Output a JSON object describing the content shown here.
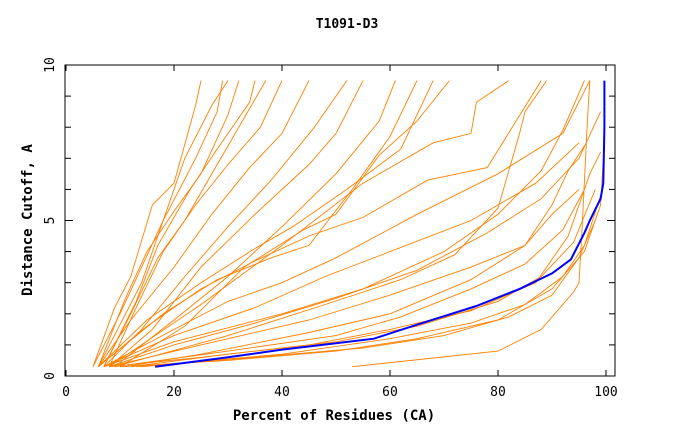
{
  "chart_data": {
    "type": "line",
    "title": "T1091-D3",
    "xlabel": "Percent of Residues (CA)",
    "ylabel": "Distance Cutoff, A",
    "xlim": [
      0,
      100
    ],
    "ylim": [
      0,
      10
    ],
    "xticks": [
      "0",
      "20",
      "40",
      "60",
      "80",
      "100"
    ],
    "yticks": [
      "0",
      "5",
      "10"
    ],
    "grid": false,
    "colors": {
      "models": "#ff8000",
      "highlight": "#0000ff"
    },
    "highlight_series": [
      [
        16.5,
        0.3
      ],
      [
        30,
        0.6
      ],
      [
        40,
        0.85
      ],
      [
        50,
        1.05
      ],
      [
        57,
        1.2
      ],
      [
        65,
        1.65
      ],
      [
        76,
        2.25
      ],
      [
        84,
        2.8
      ],
      [
        90,
        3.3
      ],
      [
        93.5,
        3.75
      ],
      [
        96,
        4.6
      ],
      [
        97,
        5.0
      ],
      [
        99,
        5.7
      ],
      [
        99.5,
        6.2
      ],
      [
        99.7,
        8
      ],
      [
        99.7,
        9.5
      ]
    ],
    "series": [
      [
        [
          10,
          0.3
        ],
        [
          30,
          0.5
        ],
        [
          50,
          0.8
        ],
        [
          65,
          1.2
        ],
        [
          80,
          1.8
        ],
        [
          90,
          2.8
        ],
        [
          96,
          4
        ],
        [
          99,
          5.5
        ],
        [
          99.5,
          7
        ]
      ],
      [
        [
          12,
          0.3
        ],
        [
          30,
          0.7
        ],
        [
          50,
          1.1
        ],
        [
          65,
          1.6
        ],
        [
          80,
          2.4
        ],
        [
          88,
          3.2
        ],
        [
          94,
          4.3
        ],
        [
          98,
          6
        ]
      ],
      [
        [
          8,
          0.3
        ],
        [
          25,
          0.6
        ],
        [
          45,
          1.0
        ],
        [
          60,
          1.5
        ],
        [
          75,
          2.1
        ],
        [
          87,
          3
        ],
        [
          93,
          4.5
        ],
        [
          97,
          6.5
        ],
        [
          99,
          7.2
        ]
      ],
      [
        [
          14,
          0.3
        ],
        [
          35,
          0.6
        ],
        [
          55,
          0.9
        ],
        [
          70,
          1.3
        ],
        [
          82,
          1.9
        ],
        [
          90,
          2.6
        ],
        [
          95,
          3.8
        ],
        [
          98,
          5
        ]
      ],
      [
        [
          9,
          0.3
        ],
        [
          30,
          0.8
        ],
        [
          50,
          1.3
        ],
        [
          62,
          1.9
        ],
        [
          75,
          2.8
        ],
        [
          85,
          3.6
        ],
        [
          92,
          4.7
        ],
        [
          96,
          6
        ]
      ],
      [
        [
          11,
          0.3
        ],
        [
          25,
          0.7
        ],
        [
          45,
          1.4
        ],
        [
          60,
          2.0
        ],
        [
          75,
          3.1
        ],
        [
          85,
          4.2
        ],
        [
          90,
          5.2
        ],
        [
          95,
          6
        ]
      ],
      [
        [
          13,
          0.3
        ],
        [
          40,
          0.7
        ],
        [
          60,
          1.2
        ],
        [
          75,
          1.7
        ],
        [
          85,
          2.3
        ],
        [
          92,
          3.2
        ],
        [
          96,
          4.2
        ],
        [
          99,
          5.8
        ]
      ],
      [
        [
          53,
          0.3
        ],
        [
          80,
          0.8
        ],
        [
          88,
          1.5
        ],
        [
          94,
          2.7
        ],
        [
          95,
          3
        ],
        [
          95.5,
          4.5
        ],
        [
          96.5,
          8
        ],
        [
          97,
          9.5
        ]
      ],
      [
        [
          8,
          0.3
        ],
        [
          20,
          1.0
        ],
        [
          35,
          1.7
        ],
        [
          50,
          2.5
        ],
        [
          65,
          3.4
        ],
        [
          78,
          4.6
        ],
        [
          88,
          5.7
        ],
        [
          95,
          7
        ],
        [
          99,
          8.5
        ]
      ],
      [
        [
          7,
          0.3
        ],
        [
          20,
          1.3
        ],
        [
          35,
          2.2
        ],
        [
          48,
          3.2
        ],
        [
          60,
          4.0
        ],
        [
          75,
          5.0
        ],
        [
          87,
          6.2
        ],
        [
          95,
          7.5
        ]
      ],
      [
        [
          7,
          0.3
        ],
        [
          20,
          1.5
        ],
        [
          30,
          2.4
        ],
        [
          40,
          3.0
        ],
        [
          50,
          3.8
        ],
        [
          65,
          5.2
        ],
        [
          80,
          6.5
        ],
        [
          92,
          7.8
        ],
        [
          97,
          9.5
        ]
      ],
      [
        [
          6,
          0.3
        ],
        [
          15,
          1.6
        ],
        [
          25,
          2.8
        ],
        [
          35,
          3.7
        ],
        [
          45,
          4.5
        ],
        [
          55,
          5.1
        ],
        [
          67,
          6.3
        ],
        [
          78,
          6.7
        ],
        [
          88,
          9.5
        ]
      ],
      [
        [
          6,
          0.3
        ],
        [
          15,
          1.8
        ],
        [
          25,
          3.0
        ],
        [
          35,
          4.1
        ],
        [
          42,
          4.8
        ],
        [
          52,
          6.0
        ],
        [
          62,
          7.3
        ],
        [
          68,
          9.5
        ]
      ],
      [
        [
          6,
          0.3
        ],
        [
          18,
          2.0
        ],
        [
          28,
          3.1
        ],
        [
          38,
          3.8
        ],
        [
          45,
          4.2
        ],
        [
          53,
          6.0
        ],
        [
          60,
          7.7
        ],
        [
          65,
          9.5
        ]
      ],
      [
        [
          7,
          0.3
        ],
        [
          20,
          1.1
        ],
        [
          40,
          2.0
        ],
        [
          55,
          2.8
        ],
        [
          70,
          4.0
        ],
        [
          80,
          5.2
        ],
        [
          88,
          6.6
        ],
        [
          92,
          7.9
        ],
        [
          96,
          9.5
        ]
      ],
      [
        [
          8,
          0.3
        ],
        [
          25,
          1.0
        ],
        [
          45,
          1.8
        ],
        [
          60,
          2.6
        ],
        [
          75,
          3.5
        ],
        [
          85,
          4.2
        ],
        [
          90,
          5.5
        ],
        [
          93,
          6.6
        ],
        [
          96,
          7.4
        ]
      ],
      [
        [
          9,
          0.3
        ],
        [
          30,
          1.3
        ],
        [
          48,
          2.3
        ],
        [
          62,
          3.1
        ],
        [
          72,
          3.9
        ],
        [
          80,
          5.4
        ],
        [
          84,
          7.8
        ],
        [
          85,
          8.5
        ],
        [
          89,
          9.5
        ]
      ],
      [
        [
          8,
          0.3
        ],
        [
          25,
          2.3
        ],
        [
          40,
          4.2
        ],
        [
          55,
          6.2
        ],
        [
          68,
          7.5
        ],
        [
          75,
          7.8
        ],
        [
          76,
          8.8
        ],
        [
          82,
          9.5
        ]
      ],
      [
        [
          5,
          0.3
        ],
        [
          9,
          2.2
        ],
        [
          12,
          3.2
        ],
        [
          16,
          5.5
        ],
        [
          20,
          6.2
        ],
        [
          24,
          8.7
        ],
        [
          25,
          9.5
        ]
      ],
      [
        [
          5,
          0.3
        ],
        [
          10,
          2.0
        ],
        [
          14,
          3.5
        ],
        [
          18,
          5.0
        ],
        [
          22,
          7.0
        ],
        [
          27,
          8.7
        ],
        [
          30,
          9.5
        ]
      ],
      [
        [
          6,
          0.3
        ],
        [
          11,
          2.5
        ],
        [
          15,
          4.0
        ],
        [
          20,
          5.3
        ],
        [
          25,
          6.5
        ],
        [
          30,
          8.4
        ],
        [
          32,
          9.5
        ]
      ],
      [
        [
          7,
          0.3
        ],
        [
          12,
          2.0
        ],
        [
          17,
          3.8
        ],
        [
          22,
          5.0
        ],
        [
          28,
          6.8
        ],
        [
          33,
          8.3
        ],
        [
          37,
          9.5
        ]
      ],
      [
        [
          8,
          0.3
        ],
        [
          13,
          2.2
        ],
        [
          18,
          4.0
        ],
        [
          24,
          5.5
        ],
        [
          30,
          6.8
        ],
        [
          36,
          8.0
        ],
        [
          40,
          9.5
        ]
      ],
      [
        [
          6,
          0.3
        ],
        [
          12,
          1.8
        ],
        [
          20,
          3.5
        ],
        [
          27,
          5.2
        ],
        [
          34,
          6.7
        ],
        [
          40,
          7.8
        ],
        [
          45,
          9.5
        ]
      ],
      [
        [
          7,
          0.3
        ],
        [
          14,
          1.5
        ],
        [
          22,
          3.2
        ],
        [
          30,
          4.8
        ],
        [
          38,
          6.3
        ],
        [
          46,
          8.0
        ],
        [
          52,
          9.5
        ]
      ],
      [
        [
          8,
          0.3
        ],
        [
          16,
          1.5
        ],
        [
          25,
          3.5
        ],
        [
          35,
          5.2
        ],
        [
          45,
          6.8
        ],
        [
          50,
          7.8
        ],
        [
          55,
          9.5
        ]
      ],
      [
        [
          9,
          0.3
        ],
        [
          20,
          1.8
        ],
        [
          30,
          3.2
        ],
        [
          40,
          4.8
        ],
        [
          50,
          6.5
        ],
        [
          58,
          8.2
        ],
        [
          61,
          9.5
        ]
      ],
      [
        [
          10,
          0.3
        ],
        [
          22,
          1.6
        ],
        [
          33,
          3.5
        ],
        [
          44,
          4.7
        ],
        [
          50,
          5.2
        ],
        [
          58,
          7.1
        ],
        [
          65,
          8.2
        ],
        [
          71,
          9.5
        ]
      ],
      [
        [
          7,
          0.3
        ],
        [
          13,
          2.4
        ],
        [
          17,
          4.2
        ],
        [
          23,
          6.0
        ],
        [
          28,
          7.3
        ],
        [
          34,
          8.8
        ],
        [
          35,
          9.5
        ]
      ],
      [
        [
          6,
          0.3
        ],
        [
          14,
          3.0
        ],
        [
          18,
          5.0
        ],
        [
          24,
          7.0
        ],
        [
          28,
          8.5
        ],
        [
          29,
          9.5
        ]
      ]
    ]
  }
}
